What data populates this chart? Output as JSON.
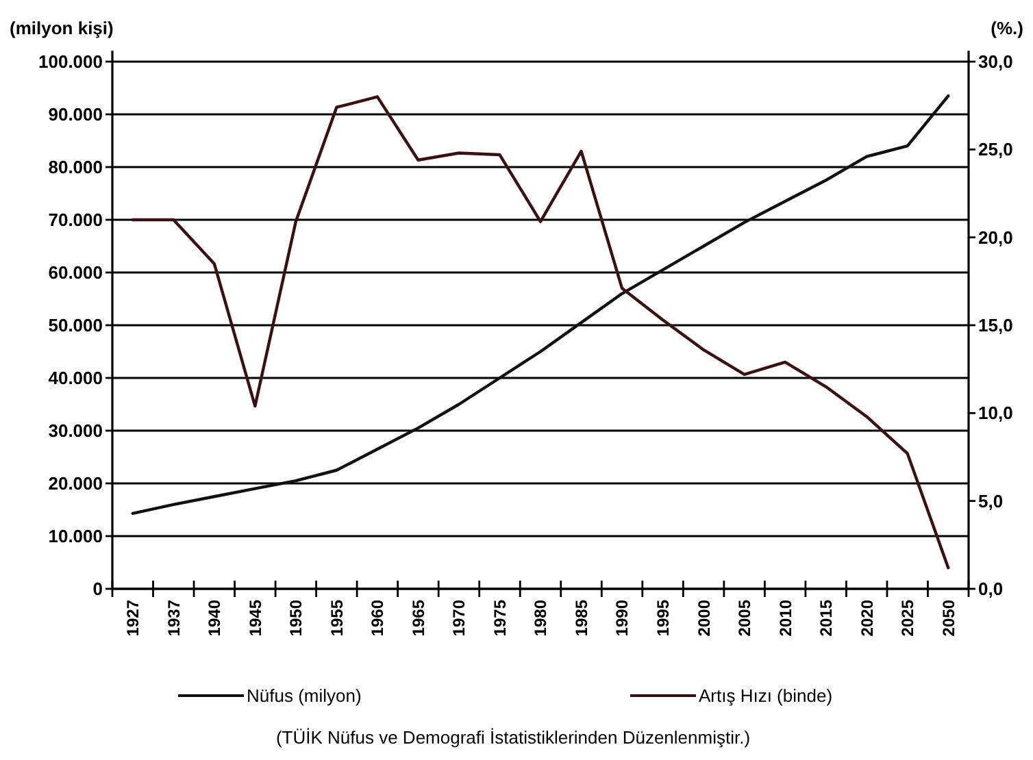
{
  "chart_data": {
    "type": "line",
    "ylabel": "(milyon kişi)",
    "y2label": "(%.)",
    "categories": [
      "1927",
      "1937",
      "1940",
      "1945",
      "1950",
      "1955",
      "1960",
      "1965",
      "1970",
      "1975",
      "1980",
      "1985",
      "1990",
      "1995",
      "2000",
      "2005",
      "2010",
      "2015",
      "2020",
      "2025",
      "2050"
    ],
    "series": [
      {
        "name": "Nüfus (milyon)",
        "color": "#111111",
        "values": [
          14300,
          16000,
          17500,
          19000,
          20500,
          22500,
          26500,
          30500,
          35000,
          40000,
          45000,
          50500,
          56000,
          60500,
          65000,
          69500,
          73500,
          77500,
          82000,
          84000,
          93500
        ]
      },
      {
        "name": "Artış Hızı (binde)",
        "color": "#3a1010",
        "axis": "y2",
        "values": [
          21.0,
          21.0,
          18.5,
          10.4,
          20.9,
          27.4,
          28.0,
          24.4,
          24.8,
          24.7,
          20.9,
          24.9,
          17.1,
          15.3,
          13.6,
          12.2,
          12.9,
          11.5,
          9.8,
          7.7,
          1.2
        ]
      }
    ],
    "ylim": [
      0,
      100000
    ],
    "yticks": [
      {
        "value": 0,
        "label": "0"
      },
      {
        "value": 10000,
        "label": "10.000"
      },
      {
        "value": 20000,
        "label": "20.000"
      },
      {
        "value": 30000,
        "label": "30.000"
      },
      {
        "value": 40000,
        "label": "40.000"
      },
      {
        "value": 50000,
        "label": "50.000"
      },
      {
        "value": 60000,
        "label": "60.000"
      },
      {
        "value": 70000,
        "label": "70.000"
      },
      {
        "value": 80000,
        "label": "80.000"
      },
      {
        "value": 90000,
        "label": "90.000"
      },
      {
        "value": 100000,
        "label": "100.000"
      }
    ],
    "y2lim": [
      0,
      30
    ],
    "y2ticks": [
      {
        "value": 0,
        "label": "0,0"
      },
      {
        "value": 5,
        "label": "5,0"
      },
      {
        "value": 10,
        "label": "10,0"
      },
      {
        "value": 15,
        "label": "15,0"
      },
      {
        "value": 20,
        "label": "20,0"
      },
      {
        "value": 25,
        "label": "25,0"
      },
      {
        "value": 30,
        "label": "30,0"
      }
    ],
    "grid": "y",
    "legend": "bottom",
    "marker": "none",
    "line_style": "solid",
    "annotations": [
      "(TÜİK Nüfus ve Demografi İstatistiklerinden Düzenlenmiştir.)"
    ]
  }
}
